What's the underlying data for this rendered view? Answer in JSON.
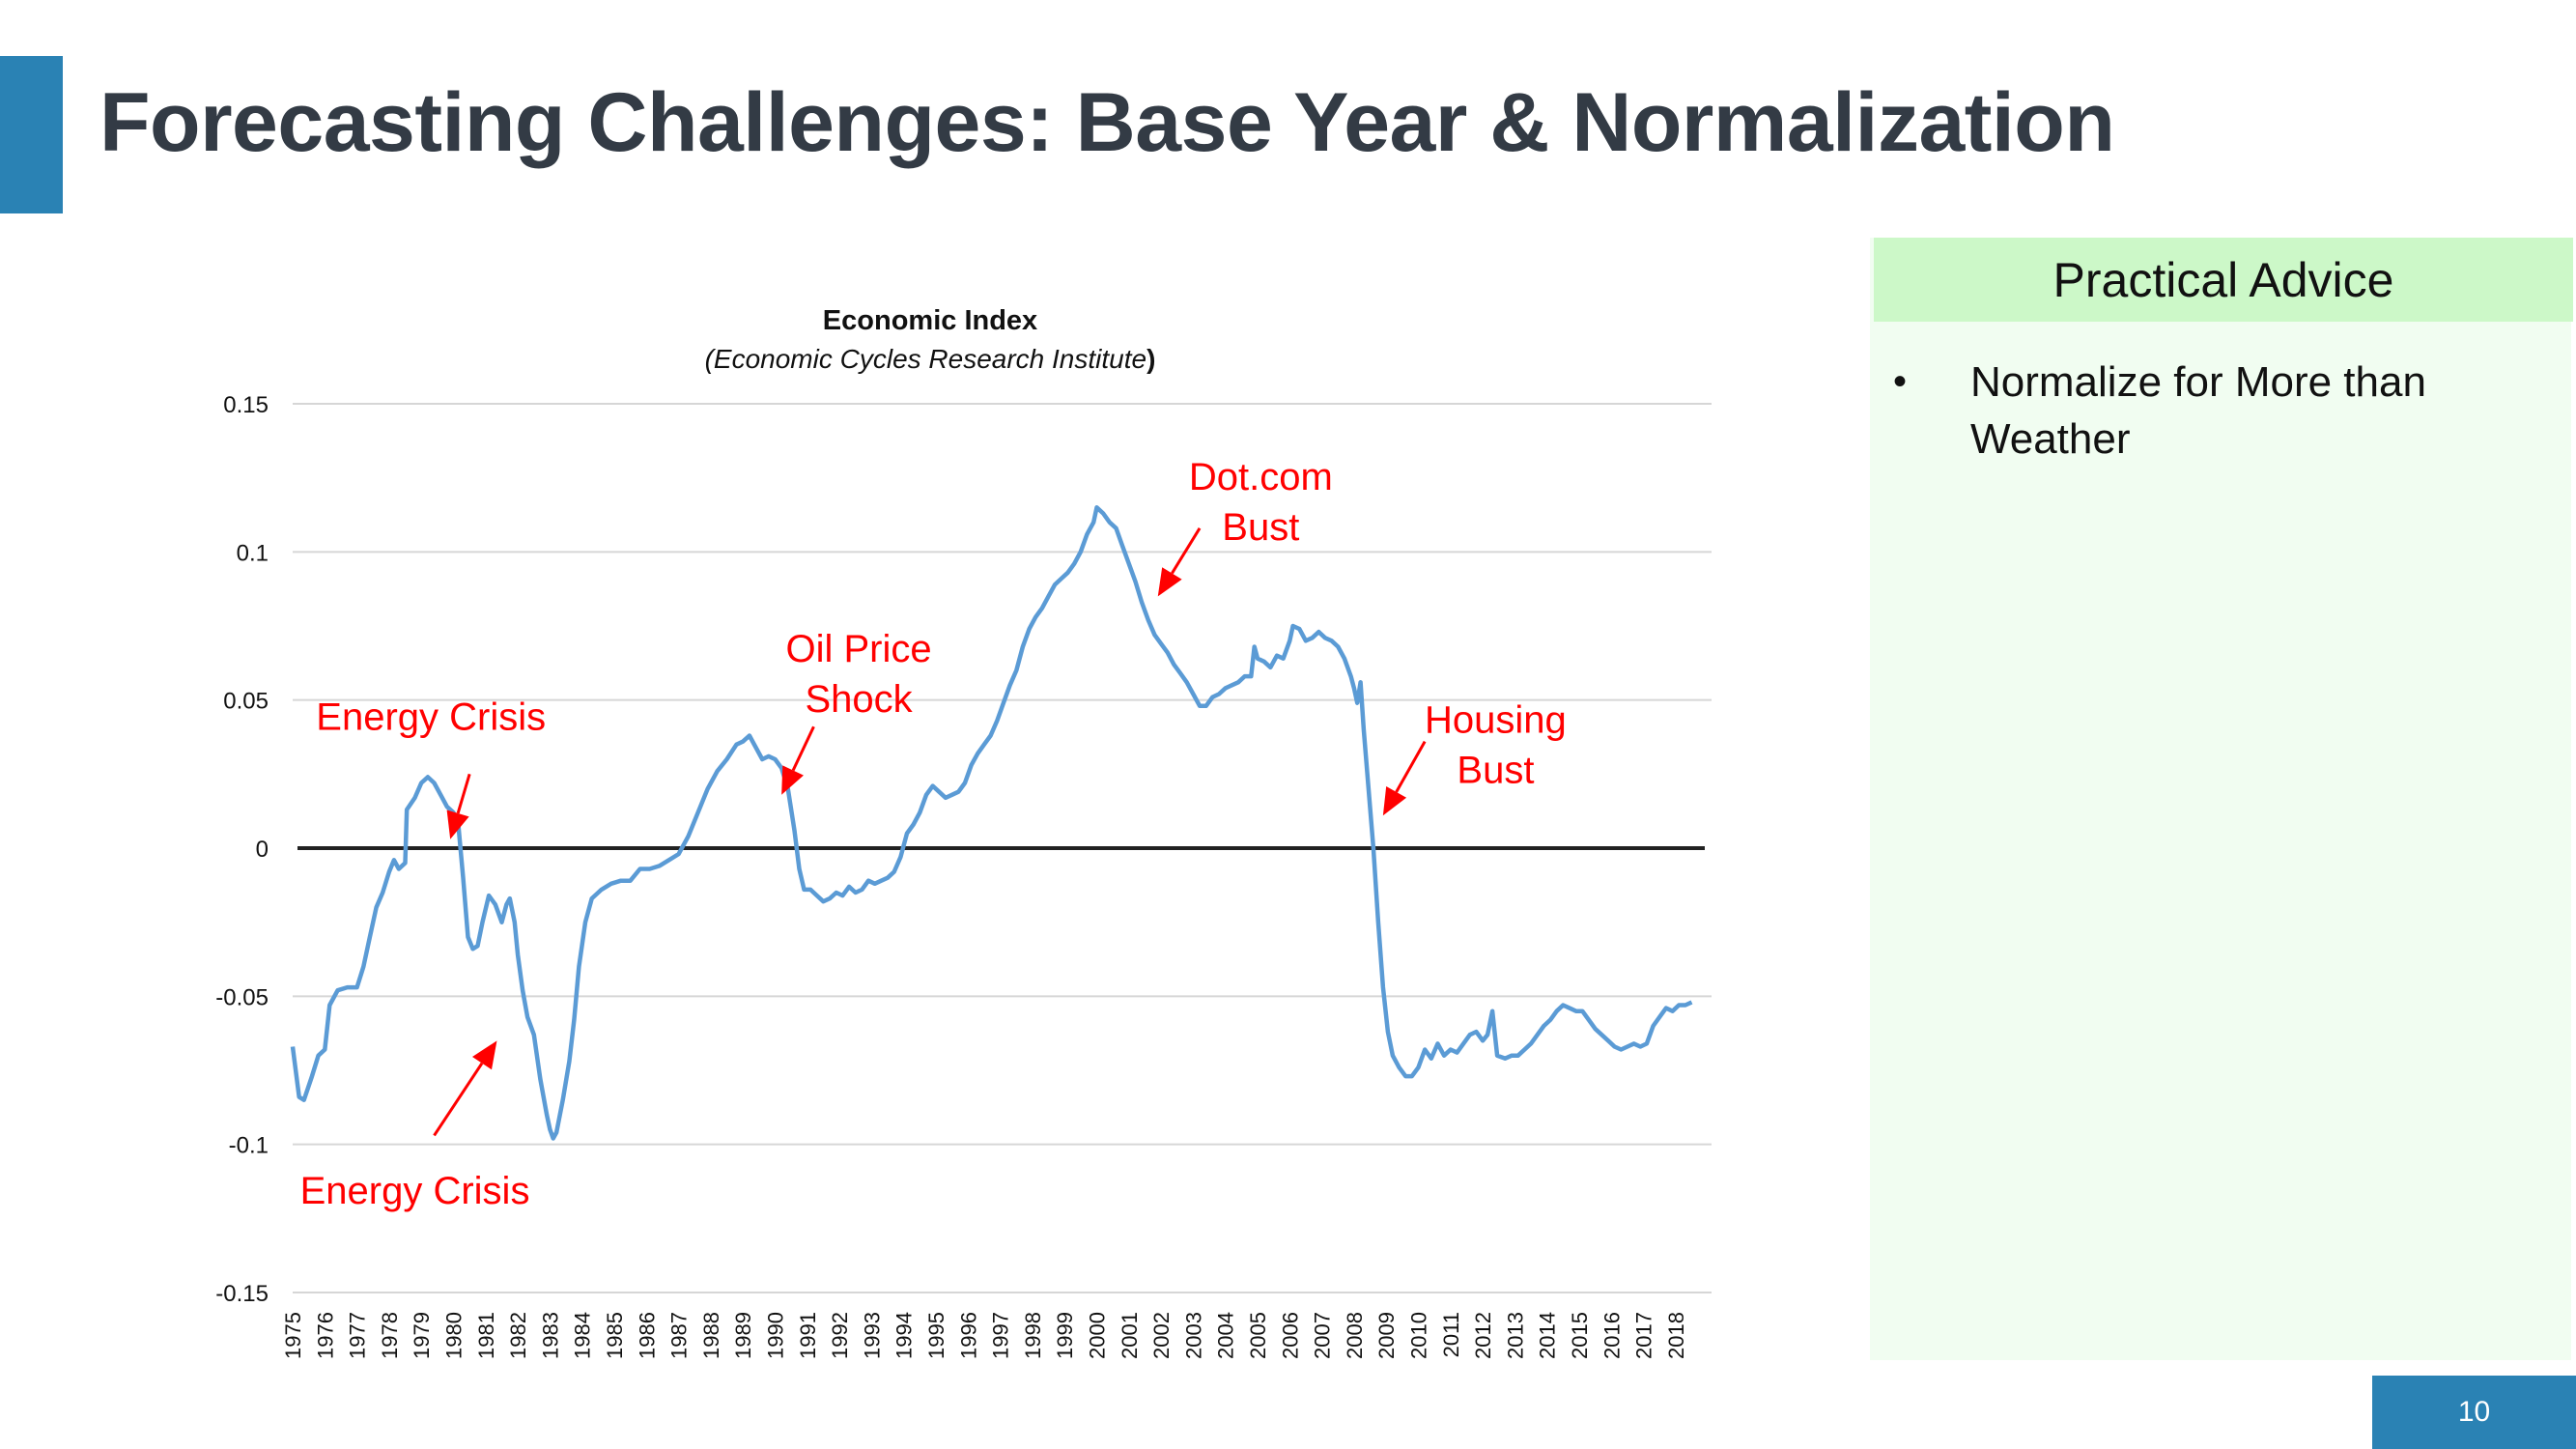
{
  "slide": {
    "title": "Forecasting Challenges: Base Year & Normalization",
    "page_number": "10",
    "accent_color": "#2a82b4"
  },
  "advice": {
    "header": "Practical Advice",
    "items": [
      "Normalize for More than Weather"
    ],
    "header_color": "#ccf8c8",
    "panel_color": "#f1fdf1"
  },
  "chart_data": {
    "type": "line",
    "title": "Economic Index",
    "subtitle_italic": "Economic Cycles Research Institute",
    "subtitle_open": "(",
    "subtitle_close": ")",
    "xlabel": "",
    "ylabel": "",
    "ylim": [
      -0.15,
      0.15
    ],
    "y_ticks": [
      0.15,
      0.1,
      0.05,
      0,
      -0.05,
      -0.1,
      -0.15
    ],
    "y_tick_labels": [
      "0.15",
      "0.1",
      "0.05",
      "0",
      "-0.05",
      "-0.1",
      "-0.15"
    ],
    "x_tick_labels": [
      "1975",
      "1976",
      "1977",
      "1978",
      "1979",
      "1980",
      "1981",
      "1982",
      "1983",
      "1984",
      "1985",
      "1986",
      "1987",
      "1988",
      "1989",
      "1990",
      "1991",
      "1992",
      "1993",
      "1994",
      "1995",
      "1996",
      "1997",
      "1998",
      "1999",
      "2000",
      "2001",
      "2002",
      "2003",
      "2004",
      "2005",
      "2006",
      "2007",
      "2008",
      "2009",
      "2010",
      "2011",
      "2012",
      "2013",
      "2014",
      "2015",
      "2016",
      "2017",
      "2018"
    ],
    "xlim": [
      1975,
      2019.1
    ],
    "grid": true,
    "zero_line": true,
    "line_color": "#5b9bd5",
    "annotation_color": "#ff0000",
    "series": [
      {
        "values": [
          [
            1975.0,
            -0.067
          ],
          [
            1975.2,
            -0.084
          ],
          [
            1975.35,
            -0.085
          ],
          [
            1975.6,
            -0.077
          ],
          [
            1975.8,
            -0.07
          ],
          [
            1976.0,
            -0.068
          ],
          [
            1976.15,
            -0.053
          ],
          [
            1976.4,
            -0.048
          ],
          [
            1976.7,
            -0.047
          ],
          [
            1977.0,
            -0.047
          ],
          [
            1977.2,
            -0.04
          ],
          [
            1977.4,
            -0.03
          ],
          [
            1977.6,
            -0.02
          ],
          [
            1977.8,
            -0.015
          ],
          [
            1978.0,
            -0.008
          ],
          [
            1978.15,
            -0.004
          ],
          [
            1978.3,
            -0.007
          ],
          [
            1978.5,
            -0.005
          ],
          [
            1978.55,
            0.013
          ],
          [
            1978.8,
            0.017
          ],
          [
            1979.0,
            0.022
          ],
          [
            1979.2,
            0.024
          ],
          [
            1979.4,
            0.022
          ],
          [
            1979.6,
            0.018
          ],
          [
            1979.8,
            0.014
          ],
          [
            1980.0,
            0.012
          ],
          [
            1980.15,
            0.008
          ],
          [
            1980.3,
            -0.01
          ],
          [
            1980.45,
            -0.03
          ],
          [
            1980.6,
            -0.034
          ],
          [
            1980.75,
            -0.033
          ],
          [
            1980.9,
            -0.025
          ],
          [
            1981.1,
            -0.016
          ],
          [
            1981.3,
            -0.019
          ],
          [
            1981.5,
            -0.025
          ],
          [
            1981.65,
            -0.019
          ],
          [
            1981.75,
            -0.017
          ],
          [
            1981.9,
            -0.025
          ],
          [
            1982.0,
            -0.036
          ],
          [
            1982.15,
            -0.048
          ],
          [
            1982.3,
            -0.057
          ],
          [
            1982.5,
            -0.063
          ],
          [
            1982.7,
            -0.078
          ],
          [
            1982.9,
            -0.09
          ],
          [
            1983.0,
            -0.095
          ],
          [
            1983.1,
            -0.098
          ],
          [
            1983.2,
            -0.096
          ],
          [
            1983.4,
            -0.085
          ],
          [
            1983.6,
            -0.072
          ],
          [
            1983.75,
            -0.058
          ],
          [
            1983.9,
            -0.04
          ],
          [
            1984.1,
            -0.025
          ],
          [
            1984.3,
            -0.017
          ],
          [
            1984.6,
            -0.014
          ],
          [
            1984.9,
            -0.012
          ],
          [
            1985.2,
            -0.011
          ],
          [
            1985.5,
            -0.011
          ],
          [
            1985.8,
            -0.007
          ],
          [
            1986.1,
            -0.007
          ],
          [
            1986.4,
            -0.006
          ],
          [
            1986.7,
            -0.004
          ],
          [
            1987.0,
            -0.002
          ],
          [
            1987.3,
            0.004
          ],
          [
            1987.6,
            0.012
          ],
          [
            1987.9,
            0.02
          ],
          [
            1988.2,
            0.026
          ],
          [
            1988.5,
            0.03
          ],
          [
            1988.8,
            0.035
          ],
          [
            1989.0,
            0.036
          ],
          [
            1989.2,
            0.038
          ],
          [
            1989.4,
            0.034
          ],
          [
            1989.6,
            0.03
          ],
          [
            1989.8,
            0.031
          ],
          [
            1990.0,
            0.03
          ],
          [
            1990.2,
            0.027
          ],
          [
            1990.4,
            0.02
          ],
          [
            1990.6,
            0.006
          ],
          [
            1990.75,
            -0.007
          ],
          [
            1990.9,
            -0.014
          ],
          [
            1991.1,
            -0.014
          ],
          [
            1991.3,
            -0.016
          ],
          [
            1991.5,
            -0.018
          ],
          [
            1991.7,
            -0.017
          ],
          [
            1991.9,
            -0.015
          ],
          [
            1992.1,
            -0.016
          ],
          [
            1992.3,
            -0.013
          ],
          [
            1992.5,
            -0.015
          ],
          [
            1992.7,
            -0.014
          ],
          [
            1992.9,
            -0.011
          ],
          [
            1993.1,
            -0.012
          ],
          [
            1993.3,
            -0.011
          ],
          [
            1993.5,
            -0.01
          ],
          [
            1993.7,
            -0.008
          ],
          [
            1993.9,
            -0.003
          ],
          [
            1994.1,
            0.005
          ],
          [
            1994.3,
            0.008
          ],
          [
            1994.5,
            0.012
          ],
          [
            1994.7,
            0.018
          ],
          [
            1994.9,
            0.021
          ],
          [
            1995.1,
            0.019
          ],
          [
            1995.3,
            0.017
          ],
          [
            1995.5,
            0.018
          ],
          [
            1995.7,
            0.019
          ],
          [
            1995.9,
            0.022
          ],
          [
            1996.1,
            0.028
          ],
          [
            1996.3,
            0.032
          ],
          [
            1996.5,
            0.035
          ],
          [
            1996.7,
            0.038
          ],
          [
            1996.9,
            0.043
          ],
          [
            1997.1,
            0.049
          ],
          [
            1997.3,
            0.055
          ],
          [
            1997.5,
            0.06
          ],
          [
            1997.7,
            0.068
          ],
          [
            1997.9,
            0.074
          ],
          [
            1998.1,
            0.078
          ],
          [
            1998.3,
            0.081
          ],
          [
            1998.5,
            0.085
          ],
          [
            1998.7,
            0.089
          ],
          [
            1998.9,
            0.091
          ],
          [
            1999.1,
            0.093
          ],
          [
            1999.3,
            0.096
          ],
          [
            1999.5,
            0.1
          ],
          [
            1999.7,
            0.106
          ],
          [
            1999.9,
            0.11
          ],
          [
            2000.0,
            0.115
          ],
          [
            2000.2,
            0.113
          ],
          [
            2000.4,
            0.11
          ],
          [
            2000.6,
            0.108
          ],
          [
            2000.8,
            0.102
          ],
          [
            2001.0,
            0.096
          ],
          [
            2001.2,
            0.09
          ],
          [
            2001.4,
            0.083
          ],
          [
            2001.6,
            0.077
          ],
          [
            2001.8,
            0.072
          ],
          [
            2002.0,
            0.069
          ],
          [
            2002.2,
            0.066
          ],
          [
            2002.4,
            0.062
          ],
          [
            2002.6,
            0.059
          ],
          [
            2002.8,
            0.056
          ],
          [
            2003.0,
            0.052
          ],
          [
            2003.2,
            0.048
          ],
          [
            2003.4,
            0.048
          ],
          [
            2003.6,
            0.051
          ],
          [
            2003.8,
            0.052
          ],
          [
            2004.0,
            0.054
          ],
          [
            2004.2,
            0.055
          ],
          [
            2004.4,
            0.056
          ],
          [
            2004.6,
            0.058
          ],
          [
            2004.8,
            0.058
          ],
          [
            2004.9,
            0.068
          ],
          [
            2005.0,
            0.064
          ],
          [
            2005.2,
            0.063
          ],
          [
            2005.4,
            0.061
          ],
          [
            2005.6,
            0.065
          ],
          [
            2005.8,
            0.064
          ],
          [
            2006.0,
            0.07
          ],
          [
            2006.1,
            0.075
          ],
          [
            2006.3,
            0.074
          ],
          [
            2006.5,
            0.07
          ],
          [
            2006.7,
            0.071
          ],
          [
            2006.9,
            0.073
          ],
          [
            2007.1,
            0.071
          ],
          [
            2007.3,
            0.07
          ],
          [
            2007.5,
            0.068
          ],
          [
            2007.7,
            0.064
          ],
          [
            2007.9,
            0.058
          ],
          [
            2008.0,
            0.054
          ],
          [
            2008.1,
            0.049
          ],
          [
            2008.2,
            0.056
          ],
          [
            2008.3,
            0.04
          ],
          [
            2008.45,
            0.02
          ],
          [
            2008.6,
            0.0
          ],
          [
            2008.75,
            -0.025
          ],
          [
            2008.9,
            -0.047
          ],
          [
            2009.05,
            -0.062
          ],
          [
            2009.2,
            -0.07
          ],
          [
            2009.4,
            -0.074
          ],
          [
            2009.6,
            -0.077
          ],
          [
            2009.8,
            -0.077
          ],
          [
            2010.0,
            -0.074
          ],
          [
            2010.2,
            -0.068
          ],
          [
            2010.4,
            -0.071
          ],
          [
            2010.6,
            -0.066
          ],
          [
            2010.8,
            -0.07
          ],
          [
            2011.0,
            -0.068
          ],
          [
            2011.2,
            -0.069
          ],
          [
            2011.4,
            -0.066
          ],
          [
            2011.6,
            -0.063
          ],
          [
            2011.8,
            -0.062
          ],
          [
            2012.0,
            -0.065
          ],
          [
            2012.15,
            -0.063
          ],
          [
            2012.3,
            -0.055
          ],
          [
            2012.45,
            -0.07
          ],
          [
            2012.7,
            -0.071
          ],
          [
            2012.9,
            -0.07
          ],
          [
            2013.1,
            -0.07
          ],
          [
            2013.3,
            -0.068
          ],
          [
            2013.5,
            -0.066
          ],
          [
            2013.7,
            -0.063
          ],
          [
            2013.9,
            -0.06
          ],
          [
            2014.1,
            -0.058
          ],
          [
            2014.3,
            -0.055
          ],
          [
            2014.5,
            -0.053
          ],
          [
            2014.7,
            -0.054
          ],
          [
            2014.9,
            -0.055
          ],
          [
            2015.1,
            -0.055
          ],
          [
            2015.3,
            -0.058
          ],
          [
            2015.5,
            -0.061
          ],
          [
            2015.7,
            -0.063
          ],
          [
            2015.9,
            -0.065
          ],
          [
            2016.1,
            -0.067
          ],
          [
            2016.3,
            -0.068
          ],
          [
            2016.5,
            -0.067
          ],
          [
            2016.7,
            -0.066
          ],
          [
            2016.9,
            -0.067
          ],
          [
            2017.1,
            -0.066
          ],
          [
            2017.3,
            -0.06
          ],
          [
            2017.5,
            -0.057
          ],
          [
            2017.7,
            -0.054
          ],
          [
            2017.9,
            -0.055
          ],
          [
            2018.1,
            -0.053
          ],
          [
            2018.3,
            -0.053
          ],
          [
            2018.5,
            -0.052
          ]
        ]
      }
    ],
    "annotations": [
      {
        "lines": [
          "Energy Crisis"
        ],
        "anchor": [
          1979.3,
          0.04
        ],
        "arrow_tail": [
          1980.5,
          0.025
        ],
        "arrow_head": [
          1979.9,
          0.003
        ]
      },
      {
        "lines": [
          "Energy Crisis"
        ],
        "anchor": [
          1978.8,
          -0.12
        ],
        "arrow_tail": [
          1979.4,
          -0.097
        ],
        "arrow_head": [
          1981.35,
          -0.065
        ]
      },
      {
        "lines": [
          "Oil Price",
          "Shock"
        ],
        "anchor": [
          1992.6,
          0.063
        ],
        "arrow_tail": [
          1991.2,
          0.041
        ],
        "arrow_head": [
          1990.2,
          0.018
        ]
      },
      {
        "lines": [
          "Dot.com",
          "Bust"
        ],
        "anchor": [
          2005.1,
          0.121
        ],
        "arrow_tail": [
          2003.2,
          0.108
        ],
        "arrow_head": [
          2001.9,
          0.085
        ]
      },
      {
        "lines": [
          "Housing",
          "Bust"
        ],
        "anchor": [
          2012.4,
          0.039
        ],
        "arrow_tail": [
          2010.2,
          0.036
        ],
        "arrow_head": [
          2008.9,
          0.011
        ]
      }
    ]
  }
}
